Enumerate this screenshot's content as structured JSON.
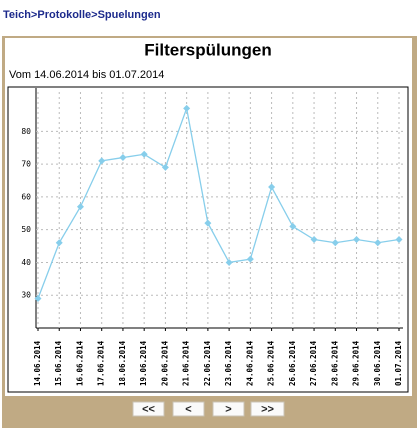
{
  "breadcrumb": {
    "items": [
      "Teich",
      "Protokolle",
      "Spuelungen"
    ],
    "separator": ">"
  },
  "panel": {
    "title": "Filterspülungen",
    "subtitle": "Vom 14.06.2014 bis 01.07.2014"
  },
  "chart_data": {
    "type": "line",
    "categories": [
      "14.06.2014",
      "15.06.2014",
      "16.06.2014",
      "17.06.2014",
      "18.06.2014",
      "19.06.2014",
      "20.06.2014",
      "21.06.2014",
      "22.06.2014",
      "23.06.2014",
      "24.06.2014",
      "25.06.2014",
      "26.06.2014",
      "27.06.2014",
      "28.06.2014",
      "29.06.2014",
      "30.06.2014",
      "01.07.2014"
    ],
    "values": [
      29,
      46,
      57,
      71,
      72,
      73,
      69,
      87,
      52,
      40,
      41,
      63,
      51,
      47,
      46,
      47,
      46,
      47
    ],
    "color": "#87ceeb",
    "ylim": [
      20,
      92
    ],
    "yticks": [
      30,
      40,
      50,
      60,
      70,
      80
    ],
    "grid": true
  },
  "buttons": [
    "<<",
    "<",
    ">",
    ">>"
  ]
}
